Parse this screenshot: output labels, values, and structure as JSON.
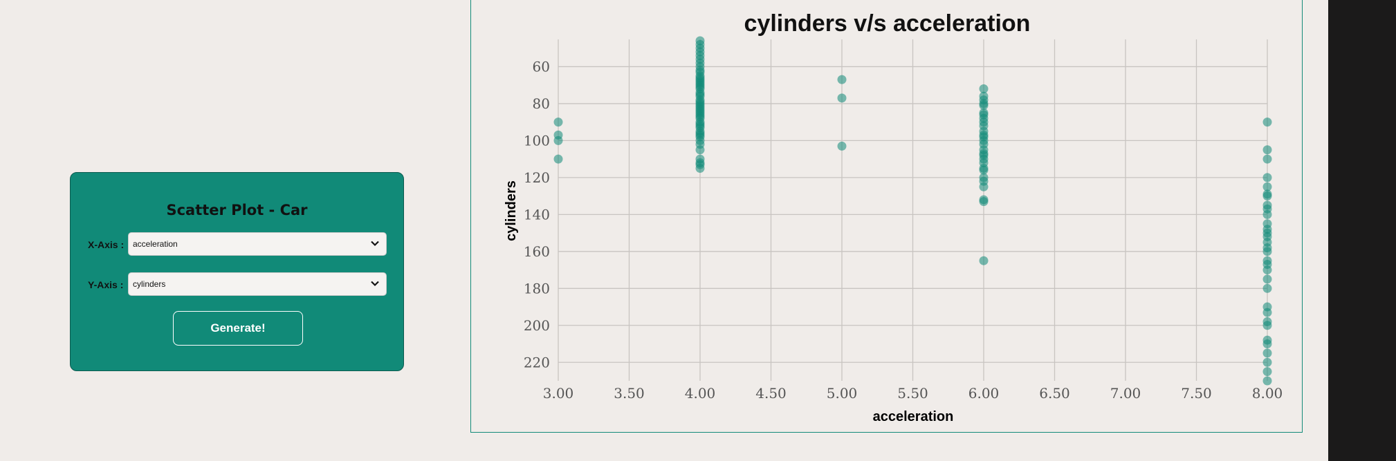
{
  "controls": {
    "title": "Scatter Plot - Car",
    "x_label": "X-Axis :",
    "x_value": "acceleration",
    "y_label": "Y-Axis :",
    "y_value": "cylinders",
    "generate_label": "Generate!"
  },
  "colors": {
    "accent": "#118a78",
    "point": "#118a78",
    "grid": "#c8c4c1",
    "background": "#f0ece9"
  },
  "chart_data": {
    "type": "scatter",
    "title": "cylinders v/s acceleration",
    "xlabel": "acceleration",
    "ylabel": "cylinders",
    "xlim": [
      3.0,
      8.0
    ],
    "ylim": [
      46,
      230
    ],
    "y_inverted": true,
    "grid": true,
    "xticks": [
      "3.00",
      "3.50",
      "4.00",
      "4.50",
      "5.00",
      "5.50",
      "6.00",
      "6.50",
      "7.00",
      "7.50",
      "8.00"
    ],
    "yticks": [
      "60",
      "80",
      "100",
      "120",
      "140",
      "160",
      "180",
      "200",
      "220"
    ],
    "series": [
      {
        "points": [
          [
            3,
            90
          ],
          [
            3,
            97
          ],
          [
            3,
            100
          ],
          [
            3,
            110
          ],
          [
            4,
            46
          ],
          [
            4,
            48
          ],
          [
            4,
            50
          ],
          [
            4,
            52
          ],
          [
            4,
            54
          ],
          [
            4,
            56
          ],
          [
            4,
            58
          ],
          [
            4,
            60
          ],
          [
            4,
            62
          ],
          [
            4,
            63
          ],
          [
            4,
            65
          ],
          [
            4,
            66
          ],
          [
            4,
            67
          ],
          [
            4,
            68
          ],
          [
            4,
            69
          ],
          [
            4,
            70
          ],
          [
            4,
            71
          ],
          [
            4,
            72
          ],
          [
            4,
            74
          ],
          [
            4,
            75
          ],
          [
            4,
            76
          ],
          [
            4,
            78
          ],
          [
            4,
            79
          ],
          [
            4,
            80
          ],
          [
            4,
            81
          ],
          [
            4,
            82
          ],
          [
            4,
            83
          ],
          [
            4,
            84
          ],
          [
            4,
            85
          ],
          [
            4,
            86
          ],
          [
            4,
            87
          ],
          [
            4,
            88
          ],
          [
            4,
            90
          ],
          [
            4,
            91
          ],
          [
            4,
            92
          ],
          [
            4,
            93
          ],
          [
            4,
            95
          ],
          [
            4,
            96
          ],
          [
            4,
            97
          ],
          [
            4,
            98
          ],
          [
            4,
            100
          ],
          [
            4,
            102
          ],
          [
            4,
            105
          ],
          [
            4,
            110
          ],
          [
            4,
            112
          ],
          [
            4,
            113
          ],
          [
            4,
            115
          ],
          [
            5,
            67
          ],
          [
            5,
            77
          ],
          [
            5,
            103
          ],
          [
            6,
            72
          ],
          [
            6,
            76
          ],
          [
            6,
            78
          ],
          [
            6,
            80
          ],
          [
            6,
            81
          ],
          [
            6,
            85
          ],
          [
            6,
            86
          ],
          [
            6,
            88
          ],
          [
            6,
            90
          ],
          [
            6,
            92
          ],
          [
            6,
            95
          ],
          [
            6,
            97
          ],
          [
            6,
            98
          ],
          [
            6,
            100
          ],
          [
            6,
            102
          ],
          [
            6,
            105
          ],
          [
            6,
            107
          ],
          [
            6,
            108
          ],
          [
            6,
            110
          ],
          [
            6,
            112
          ],
          [
            6,
            115
          ],
          [
            6,
            116
          ],
          [
            6,
            120
          ],
          [
            6,
            122
          ],
          [
            6,
            125
          ],
          [
            6,
            132
          ],
          [
            6,
            133
          ],
          [
            6,
            165
          ],
          [
            8,
            90
          ],
          [
            8,
            105
          ],
          [
            8,
            110
          ],
          [
            8,
            120
          ],
          [
            8,
            125
          ],
          [
            8,
            129
          ],
          [
            8,
            130
          ],
          [
            8,
            135
          ],
          [
            8,
            137
          ],
          [
            8,
            140
          ],
          [
            8,
            145
          ],
          [
            8,
            148
          ],
          [
            8,
            150
          ],
          [
            8,
            152
          ],
          [
            8,
            155
          ],
          [
            8,
            158
          ],
          [
            8,
            160
          ],
          [
            8,
            165
          ],
          [
            8,
            167
          ],
          [
            8,
            170
          ],
          [
            8,
            175
          ],
          [
            8,
            180
          ],
          [
            8,
            190
          ],
          [
            8,
            193
          ],
          [
            8,
            198
          ],
          [
            8,
            200
          ],
          [
            8,
            208
          ],
          [
            8,
            210
          ],
          [
            8,
            215
          ],
          [
            8,
            220
          ],
          [
            8,
            225
          ],
          [
            8,
            230
          ]
        ]
      }
    ]
  }
}
